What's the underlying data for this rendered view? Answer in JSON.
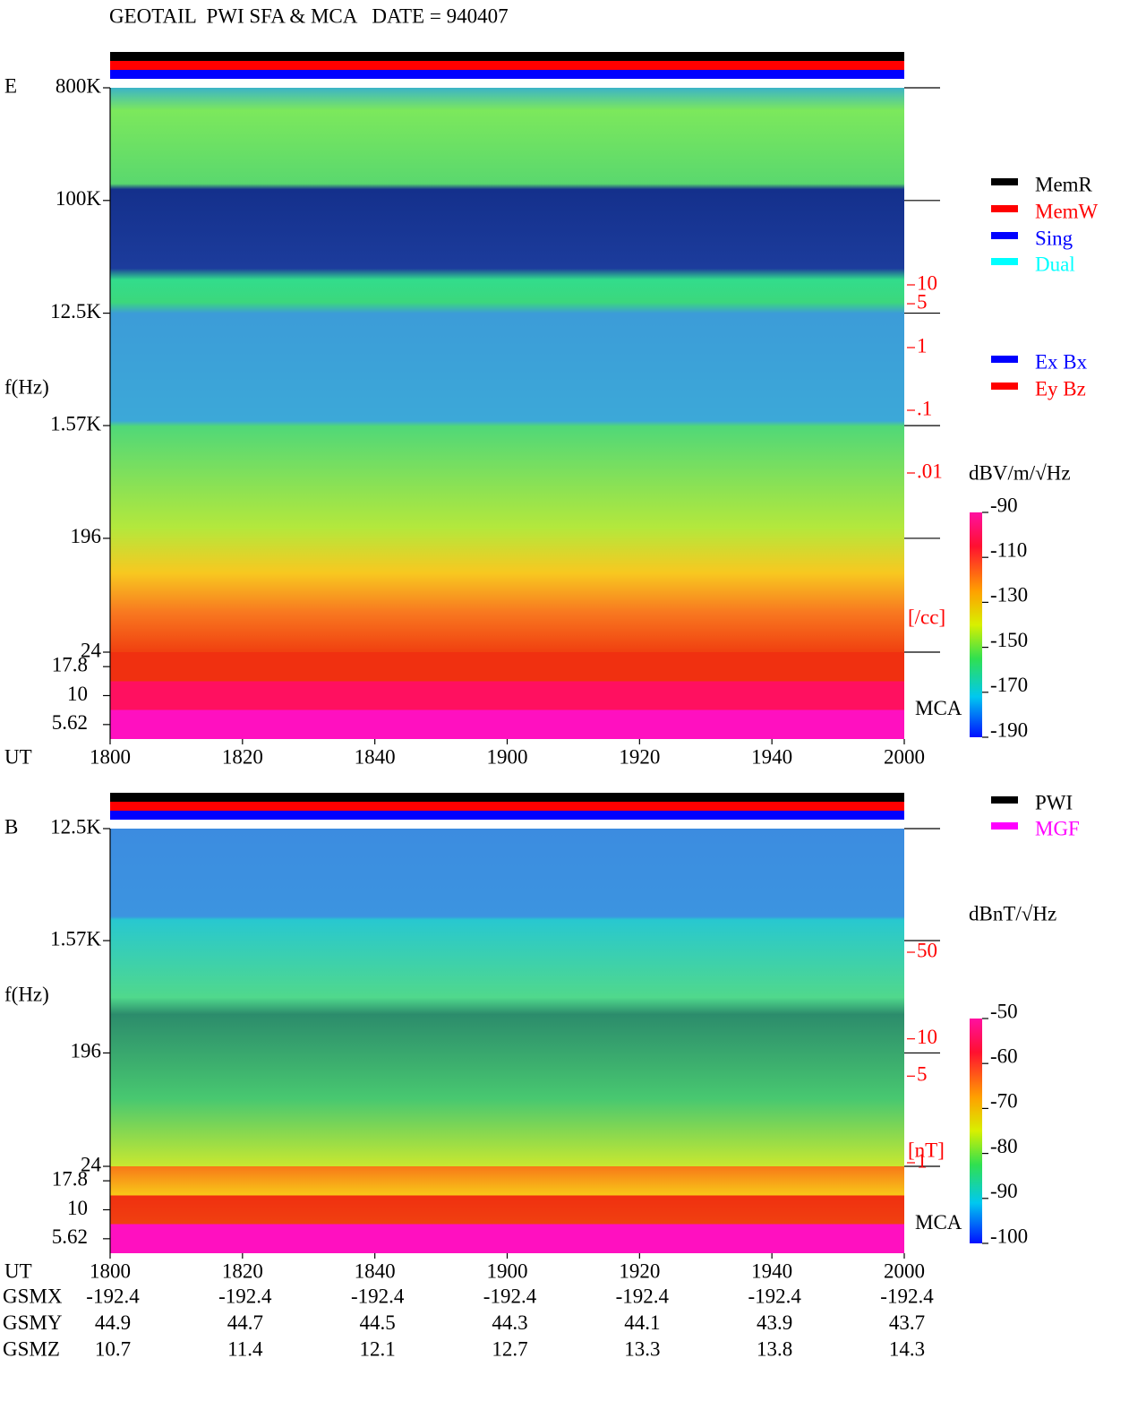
{
  "title": "GEOTAIL  PWI SFA & MCA   DATE = 940407",
  "chart_data": [
    {
      "type": "spectrogram",
      "panel_label": "E",
      "ylabel": "f(Hz)",
      "xlabel": "UT",
      "yscale": "log",
      "ylim": [
        24,
        800000
      ],
      "yticks": [
        {
          "value": 800000,
          "label": "800K"
        },
        {
          "value": 100000,
          "label": "100K"
        },
        {
          "value": 12500,
          "label": "12.5K"
        },
        {
          "value": 1570,
          "label": "1.57K"
        },
        196,
        24
      ],
      "mca_label": "MCA",
      "mca_channels": [
        "17.8",
        "10",
        "5.62"
      ],
      "x_labels": [
        "1800",
        "1820",
        "1840",
        "1900",
        "1920",
        "1940",
        "2000"
      ],
      "y2label": "[/cc]",
      "y2scale": "log",
      "y2lim": [
        0.01,
        10
      ],
      "y2color": "#ff0000",
      "y2ticks": [
        10,
        5,
        1,
        {
          "value": 0.1,
          "label": ".1"
        },
        {
          "value": 0.01,
          "label": ".01"
        }
      ],
      "status_bars": [
        "#000000",
        "#ff0000",
        "#0000ff"
      ],
      "legend": [
        {
          "name": "MemR",
          "color": "#000000"
        },
        {
          "name": "MemW",
          "color": "#ff0000"
        },
        {
          "name": "Sing",
          "color": "#0000ff"
        },
        {
          "name": "Dual",
          "color": "#00ffff"
        }
      ],
      "legend2": [
        {
          "name": "Ex Bx",
          "color": "#0000ff"
        },
        {
          "name": "Ey Bz",
          "color": "#ff0000"
        }
      ],
      "colorbar": {
        "label": "dBV/m/√Hz",
        "lim": [
          -190,
          -90
        ],
        "ticks": [
          -90,
          -110,
          -130,
          -150,
          -170,
          -190
        ]
      }
    },
    {
      "type": "spectrogram",
      "panel_label": "B",
      "ylabel": "f(Hz)",
      "xlabel": "UT",
      "yscale": "log",
      "ylim": [
        24,
        12500
      ],
      "yticks": [
        {
          "value": 12500,
          "label": "12.5K"
        },
        {
          "value": 1570,
          "label": "1.57K"
        },
        196,
        24
      ],
      "mca_label": "MCA",
      "mca_channels": [
        "17.8",
        "10",
        "5.62"
      ],
      "x_labels": [
        "1800",
        "1820",
        "1840",
        "1900",
        "1920",
        "1940",
        "2000"
      ],
      "y2label": "[nT]",
      "y2scale": "log",
      "y2lim": [
        1,
        50
      ],
      "y2color": "#ff0000",
      "y2ticks": [
        50,
        10,
        5,
        1
      ],
      "status_bars": [
        "#000000",
        "#ff0000",
        "#0000ff"
      ],
      "legend": [
        {
          "name": "PWI",
          "color": "#000000"
        },
        {
          "name": "MGF",
          "color": "#ff00ff"
        }
      ],
      "legend2": [],
      "colorbar": {
        "label": "dBnT/√Hz",
        "lim": [
          -100,
          -50
        ],
        "ticks": [
          -50,
          -60,
          -70,
          -80,
          -90,
          -100
        ]
      }
    }
  ],
  "orbit": {
    "rows": [
      {
        "name": "GSMX",
        "values": [
          -192.4,
          -192.4,
          -192.4,
          -192.4,
          -192.4,
          -192.4,
          -192.4
        ]
      },
      {
        "name": "GSMY",
        "values": [
          44.9,
          44.7,
          44.5,
          44.3,
          44.1,
          43.9,
          43.7
        ]
      },
      {
        "name": "GSMZ",
        "values": [
          10.7,
          11.4,
          12.1,
          12.7,
          13.3,
          13.8,
          14.3
        ]
      }
    ]
  }
}
